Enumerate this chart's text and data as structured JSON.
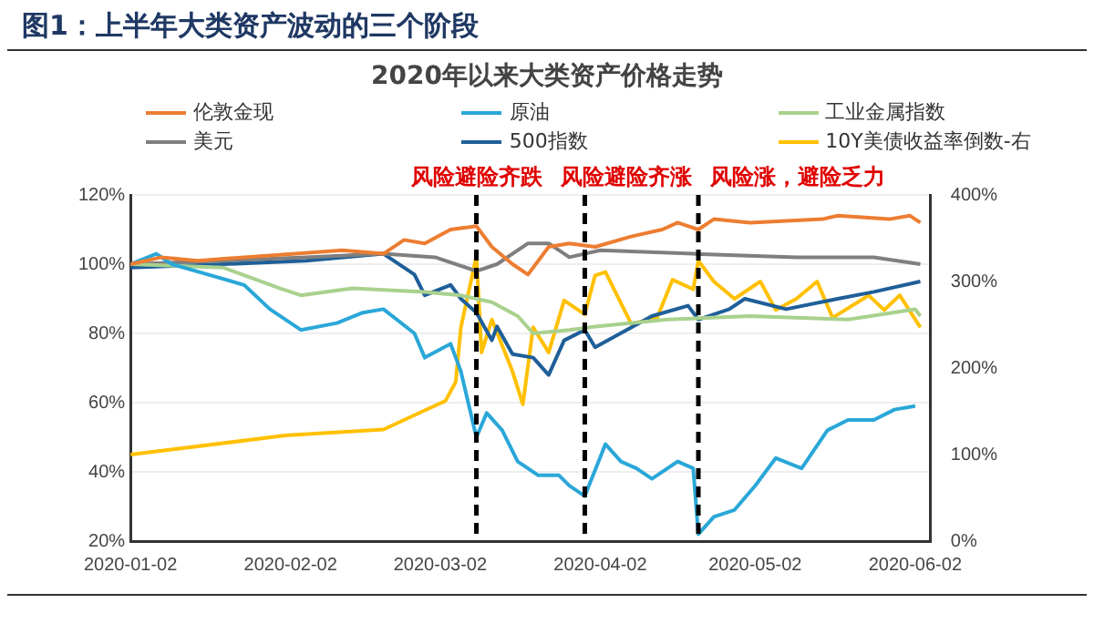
{
  "chart_data": {
    "type": "line",
    "title": "图1：上半年大类资产波动的三个阶段",
    "subtitle": "2020年以来大类资产价格走势",
    "series": [
      {
        "name": "伦敦金现",
        "color": "#ed7d31",
        "x": [
          "2020-01-02",
          "2020-01-08",
          "2020-01-15",
          "2020-01-24",
          "2020-02-03",
          "2020-02-12",
          "2020-02-20",
          "2020-02-24",
          "2020-02-28",
          "2020-03-04",
          "2020-03-09",
          "2020-03-12",
          "2020-03-16",
          "2020-03-19",
          "2020-03-23",
          "2020-03-27",
          "2020-04-01",
          "2020-04-08",
          "2020-04-14",
          "2020-04-17",
          "2020-04-21",
          "2020-04-24",
          "2020-05-01",
          "2020-05-15",
          "2020-05-18",
          "2020-05-28",
          "2020-06-01",
          "2020-06-03"
        ],
        "values": [
          100,
          102,
          101,
          102,
          103,
          104,
          103,
          107,
          106,
          110,
          111,
          105,
          100,
          97,
          105,
          106,
          105,
          108,
          110,
          112,
          110,
          113,
          112,
          113,
          114,
          113,
          114,
          112
        ]
      },
      {
        "name": "原油",
        "color": "#2aa7d8",
        "x": [
          "2020-01-02",
          "2020-01-07",
          "2020-01-10",
          "2020-01-17",
          "2020-01-24",
          "2020-01-29",
          "2020-02-04",
          "2020-02-11",
          "2020-02-16",
          "2020-02-20",
          "2020-02-26",
          "2020-02-28",
          "2020-03-04",
          "2020-03-06",
          "2020-03-09",
          "2020-03-11",
          "2020-03-14",
          "2020-03-17",
          "2020-03-21",
          "2020-03-25",
          "2020-03-27",
          "2020-03-30",
          "2020-04-03",
          "2020-04-06",
          "2020-04-09",
          "2020-04-12",
          "2020-04-17",
          "2020-04-20",
          "2020-04-21",
          "2020-04-24",
          "2020-04-28",
          "2020-05-02",
          "2020-05-06",
          "2020-05-11",
          "2020-05-16",
          "2020-05-20",
          "2020-05-25",
          "2020-05-29",
          "2020-06-02"
        ],
        "values": [
          100,
          103,
          100,
          97,
          94,
          87,
          81,
          83,
          86,
          87,
          80,
          73,
          77,
          69,
          50,
          57,
          52,
          43,
          39,
          39,
          36,
          33,
          48,
          43,
          41,
          38,
          43,
          41,
          22,
          27,
          29,
          36,
          44,
          41,
          52,
          55,
          55,
          58,
          59
        ]
      },
      {
        "name": "工业金属指数",
        "color": "#a9d18e",
        "x": [
          "2020-01-02",
          "2020-01-20",
          "2020-01-31",
          "2020-02-04",
          "2020-02-14",
          "2020-02-28",
          "2020-03-06",
          "2020-03-12",
          "2020-03-17",
          "2020-03-20",
          "2020-03-27",
          "2020-04-01",
          "2020-04-15",
          "2020-05-01",
          "2020-05-20",
          "2020-06-02",
          "2020-06-03"
        ],
        "values": [
          100,
          99,
          93,
          91,
          93,
          92,
          91,
          89,
          85,
          80,
          81,
          82,
          84,
          85,
          84,
          87,
          85
        ]
      },
      {
        "name": "美元",
        "color": "#7f7f7f",
        "x": [
          "2020-01-02",
          "2020-01-20",
          "2020-02-05",
          "2020-02-20",
          "2020-03-01",
          "2020-03-09",
          "2020-03-13",
          "2020-03-19",
          "2020-03-23",
          "2020-03-27",
          "2020-04-02",
          "2020-04-20",
          "2020-05-10",
          "2020-05-25",
          "2020-06-03"
        ],
        "values": [
          100,
          101,
          102,
          103,
          102,
          98,
          100,
          106,
          106,
          102,
          104,
          103,
          102,
          102,
          100
        ]
      },
      {
        "name": "500指数",
        "color": "#1f5f99",
        "x": [
          "2020-01-02",
          "2020-01-20",
          "2020-02-05",
          "2020-02-20",
          "2020-02-26",
          "2020-02-28",
          "2020-03-04",
          "2020-03-06",
          "2020-03-09",
          "2020-03-12",
          "2020-03-13",
          "2020-03-16",
          "2020-03-20",
          "2020-03-23",
          "2020-03-26",
          "2020-03-30",
          "2020-04-01",
          "2020-04-12",
          "2020-04-19",
          "2020-04-21",
          "2020-04-27",
          "2020-04-30",
          "2020-05-08",
          "2020-05-18",
          "2020-05-25",
          "2020-06-03"
        ],
        "values": [
          99,
          100,
          101,
          103,
          97,
          91,
          94,
          90,
          86,
          78,
          82,
          74,
          73,
          68,
          78,
          81,
          76,
          85,
          88,
          84,
          87,
          90,
          87,
          90,
          92,
          95
        ]
      },
      {
        "name": "10Y美债收益率倒数-右",
        "color": "#ffc000",
        "axis": "y2",
        "x": [
          "2020-01-02",
          "2020-02-01",
          "2020-02-20",
          "2020-02-28",
          "2020-03-03",
          "2020-03-05",
          "2020-03-06",
          "2020-03-09",
          "2020-03-10",
          "2020-03-12",
          "2020-03-16",
          "2020-03-18",
          "2020-03-20",
          "2020-03-23",
          "2020-03-26",
          "2020-03-30",
          "2020-04-01",
          "2020-04-03",
          "2020-04-08",
          "2020-04-13",
          "2020-04-16",
          "2020-04-20",
          "2020-04-21",
          "2020-04-24",
          "2020-04-28",
          "2020-05-03",
          "2020-05-06",
          "2020-05-10",
          "2020-05-14",
          "2020-05-17",
          "2020-05-24",
          "2020-05-27",
          "2020-05-30",
          "2020-06-03"
        ],
        "values": [
          100,
          122,
          129,
          151,
          162,
          184,
          247,
          329,
          218,
          256,
          196,
          158,
          247,
          218,
          278,
          262,
          307,
          311,
          251,
          258,
          302,
          291,
          324,
          300,
          280,
          300,
          267,
          280,
          300,
          258,
          284,
          267,
          284,
          247
        ]
      }
    ],
    "xlim": [
      "2020-01-02",
      "2020-06-05"
    ],
    "xticks": [
      "2020-01-02",
      "2020-02-02",
      "2020-03-02",
      "2020-04-02",
      "2020-05-02",
      "2020-06-02"
    ],
    "ylim": [
      20,
      120
    ],
    "yticks": [
      {
        "value": 20,
        "label": "20%"
      },
      {
        "value": 40,
        "label": "40%"
      },
      {
        "value": 60,
        "label": "60%"
      },
      {
        "value": 80,
        "label": "80%"
      },
      {
        "value": 100,
        "label": "100%"
      },
      {
        "value": 120,
        "label": "120%"
      }
    ],
    "y2lim": [
      0,
      400
    ],
    "y2ticks": [
      {
        "value": 0,
        "label": "0%"
      },
      {
        "value": 100,
        "label": "100%"
      },
      {
        "value": 200,
        "label": "200%"
      },
      {
        "value": 300,
        "label": "300%"
      },
      {
        "value": 400,
        "label": "400%"
      }
    ],
    "ref_lines": [
      {
        "axis": "x",
        "value": "2020-03-09",
        "label": "风险避险齐跌",
        "color": "#000000",
        "line_style": "dashed"
      },
      {
        "axis": "x",
        "value": "2020-03-30",
        "label": "风险避险齐涨",
        "color": "#000000",
        "line_style": "dashed"
      },
      {
        "axis": "x",
        "value": "2020-04-21",
        "label": "风险涨，避险乏力",
        "color": "#000000",
        "line_style": "dashed"
      }
    ],
    "grid": "y",
    "legend": "top",
    "marker": "none",
    "line_style": "solid"
  }
}
